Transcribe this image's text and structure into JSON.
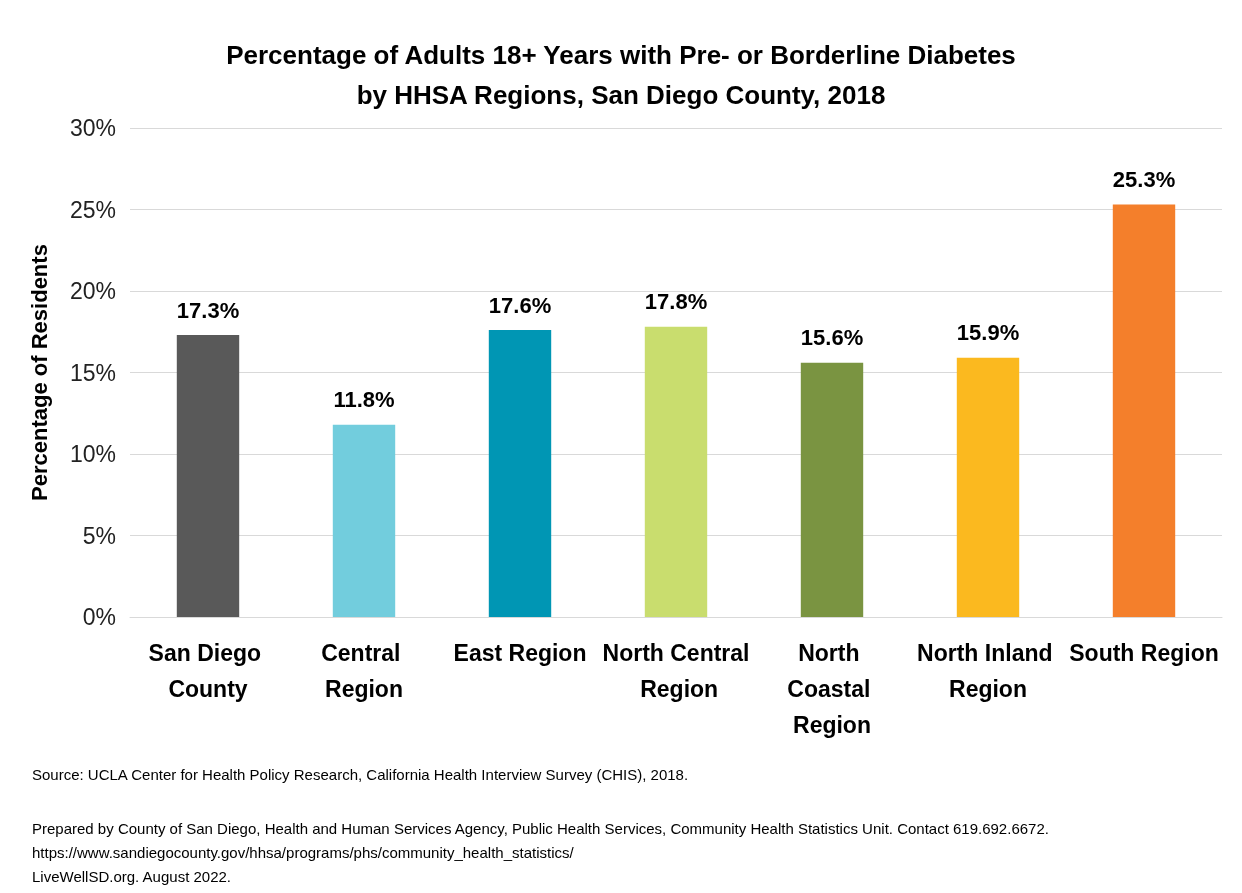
{
  "chart_data": {
    "type": "bar",
    "title": "Percentage of Adults 18+ Years with Pre- or Borderline Diabetes\nby HHSA Regions, San Diego County, 2018",
    "ylabel": "Percentage of Residents",
    "categories": [
      "San Diego County",
      "Central Region",
      "East Region",
      "North Central Region",
      "North Coastal Region",
      "North Inland Region",
      "South Region"
    ],
    "values": [
      17.3,
      11.8,
      17.6,
      17.8,
      15.6,
      15.9,
      25.3
    ],
    "colors": [
      "#595959",
      "#72cddd",
      "#0096b4",
      "#c9dd6e",
      "#7a9441",
      "#fbb91f",
      "#f47f2b"
    ],
    "value_labels": [
      "17.3%",
      "11.8%",
      "17.6%",
      "17.8%",
      "15.6%",
      "15.9%",
      "25.3%"
    ],
    "ylim": [
      0,
      30
    ],
    "yticks": [
      {
        "value": 0,
        "label": "0%"
      },
      {
        "value": 5,
        "label": "5%"
      },
      {
        "value": 10,
        "label": "10%"
      },
      {
        "value": 15,
        "label": "15%"
      },
      {
        "value": 20,
        "label": "20%"
      },
      {
        "value": 25,
        "label": "25%"
      },
      {
        "value": 30,
        "label": "30%"
      }
    ],
    "grid": "y",
    "annotations": [
      "Source: UCLA Center for Health Policy Research, California Health Interview Survey (CHIS), 2018.",
      "Prepared by County of San Diego, Health and Human Services Agency, Public Health Services, Community Health Statistics Unit. Contact 619.692.6672.\nhttps://www.sandiegocounty.gov/hhsa/programs/phs/community_health_statistics/\nLiveWellSD.org. August 2022."
    ]
  }
}
